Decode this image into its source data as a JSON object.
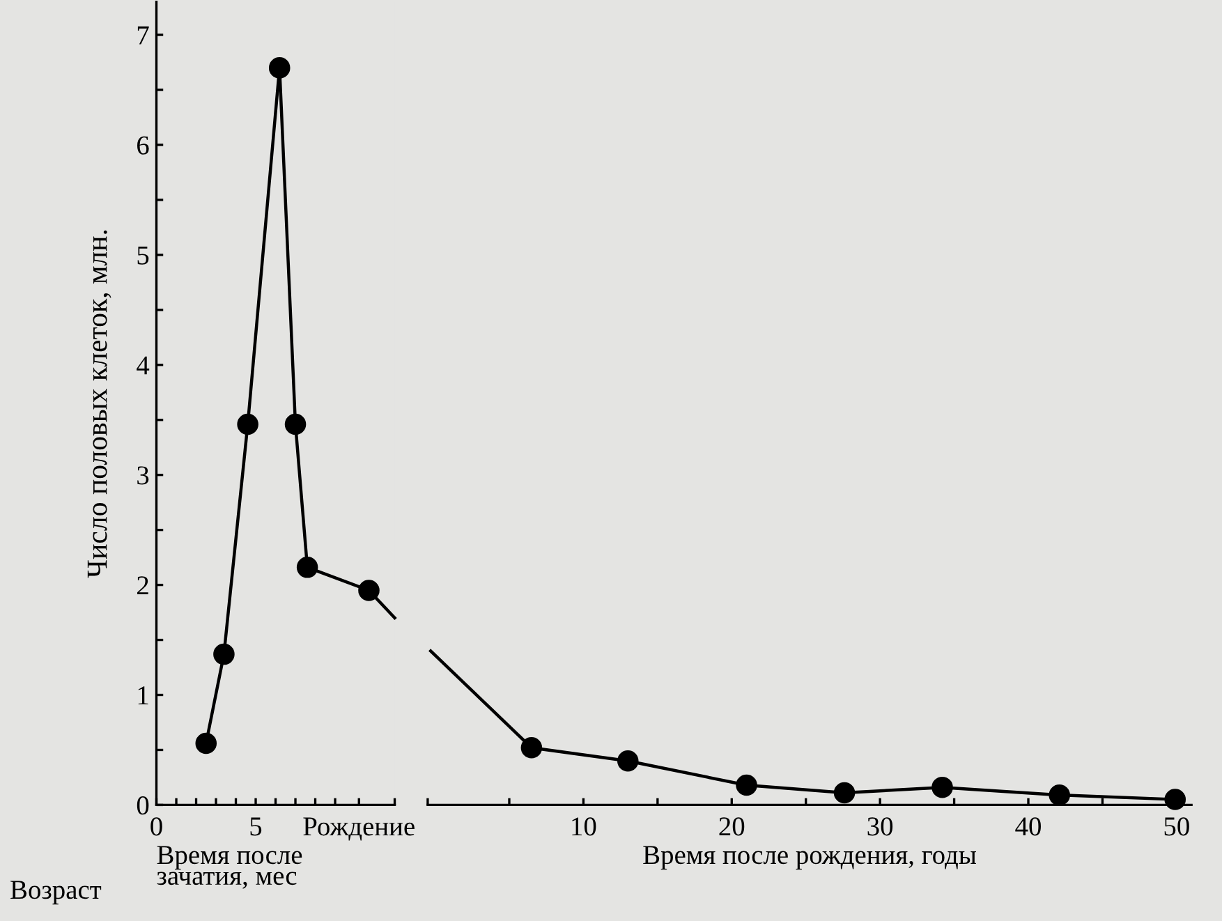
{
  "chart_data": [
    {
      "type": "line",
      "ylabel": "Число половых клеток, млн.",
      "xlabel": "Время после\nзачатия, мес",
      "annotations": [
        "Возраст"
      ],
      "xlim": [
        0,
        12
      ],
      "ylim": [
        0,
        7.3
      ],
      "xticks": [
        0,
        {
          "value": 1,
          "label": null
        },
        {
          "value": 2,
          "label": null
        },
        {
          "value": 3,
          "label": null
        },
        {
          "value": 4,
          "label": null
        },
        5,
        {
          "value": 6,
          "label": null
        },
        {
          "value": 7,
          "label": null
        },
        {
          "value": 8,
          "label": null
        },
        {
          "value": 9,
          "label": null
        },
        {
          "value": 10.2,
          "label": "Рождение"
        },
        {
          "value": 12,
          "label": null
        }
      ],
      "yticks": [
        0,
        {
          "value": 0.5,
          "label": null
        },
        1,
        {
          "value": 1.5,
          "label": null
        },
        2,
        {
          "value": 2.5,
          "label": null
        },
        3,
        {
          "value": 3.5,
          "label": null
        },
        4,
        {
          "value": 4.5,
          "label": null
        },
        5,
        {
          "value": 5.5,
          "label": null
        },
        6,
        {
          "value": 6.5,
          "label": null
        },
        7
      ],
      "grid": false,
      "legend": false,
      "series": [
        {
          "color": "#000000",
          "marker": "circle",
          "x": [
            2.5,
            3.4,
            4.6,
            6.2,
            7.0,
            7.6,
            10.7
          ],
          "values": [
            0.56,
            1.37,
            3.46,
            6.7,
            3.46,
            2.16,
            1.95
          ]
        },
        {
          "color": "#000000",
          "x": [
            10.7,
            12
          ],
          "values": [
            1.95,
            1.7
          ]
        }
      ]
    },
    {
      "type": "line",
      "xlabel": "Время после рождения, годы",
      "tick_labels": "x",
      "xlim": [
        -0.5,
        51
      ],
      "ylim": [
        0,
        7.3
      ],
      "xticks": [
        {
          "value": -0.5,
          "label": null
        },
        {
          "value": 5,
          "label": null
        },
        10,
        {
          "value": 15,
          "label": null
        },
        20,
        {
          "value": 25,
          "label": null
        },
        30,
        {
          "value": 35,
          "label": null
        },
        40,
        {
          "value": 45,
          "label": null
        },
        50
      ],
      "grid": false,
      "legend": false,
      "series": [
        {
          "color": "#000000",
          "x": [
            -0.3,
            6.5
          ],
          "values": [
            1.4,
            0.52
          ]
        },
        {
          "color": "#000000",
          "marker": "circle",
          "x": [
            6.5,
            13.0,
            21.0,
            27.6,
            34.2,
            42.1,
            49.9
          ],
          "values": [
            0.52,
            0.4,
            0.18,
            0.11,
            0.16,
            0.09,
            0.05
          ]
        }
      ]
    }
  ]
}
